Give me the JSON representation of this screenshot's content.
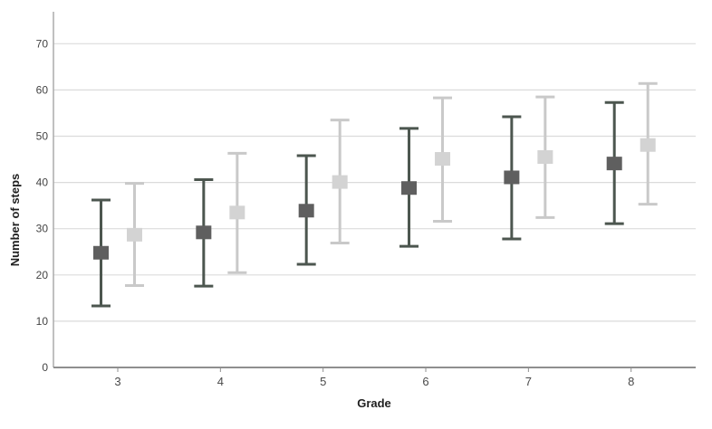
{
  "chart_data": {
    "type": "errorbar",
    "title": "",
    "xlabel": "Grade",
    "ylabel": "Number of steps",
    "categories": [
      "3",
      "4",
      "5",
      "6",
      "7",
      "8"
    ],
    "ylim": [
      0,
      70
    ],
    "yticks": [
      0,
      10,
      20,
      30,
      40,
      50,
      60,
      70
    ],
    "grid": "horizontal",
    "legend": "none",
    "series": [
      {
        "name": "dark-gray-series",
        "marker": "square",
        "marker_color": "#5f5f5f",
        "line_color": "#4c564f",
        "means": [
          24.8,
          29.2,
          33.9,
          38.8,
          41.1,
          44.1
        ],
        "lower": [
          13.3,
          17.6,
          22.3,
          26.2,
          27.8,
          31.1
        ],
        "upper": [
          36.2,
          40.6,
          45.8,
          51.7,
          54.2,
          57.3
        ]
      },
      {
        "name": "light-gray-series",
        "marker": "square",
        "marker_color": "#d3d3d3",
        "line_color": "#c9c9c9",
        "means": [
          28.7,
          33.5,
          40.1,
          45.1,
          45.5,
          48.1
        ],
        "lower": [
          17.7,
          20.5,
          26.9,
          31.6,
          32.4,
          35.3
        ],
        "upper": [
          39.8,
          46.3,
          53.5,
          58.3,
          58.5,
          61.4
        ]
      }
    ]
  },
  "style": {
    "background": "#ffffff",
    "gridline_color": "#dbdbdb",
    "y_axis_color": "#ababab",
    "x_axis_color": "#8f8f8f",
    "tick_text_color": "#444444",
    "axis_title_color": "#1f1f1f"
  }
}
